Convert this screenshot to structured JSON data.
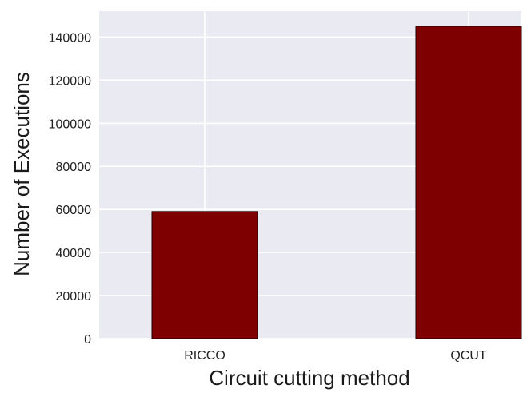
{
  "chart_data": {
    "type": "bar",
    "title": "",
    "xlabel": "Circuit cutting method",
    "ylabel": "Number of Executions",
    "categories": [
      "RICCO",
      "QCUT"
    ],
    "values": [
      59000,
      145000
    ],
    "ylim": [
      0,
      152000
    ],
    "yticks": [
      0,
      20000,
      40000,
      60000,
      80000,
      100000,
      120000,
      140000
    ],
    "ytick_labels": [
      "0",
      "20000",
      "40000",
      "60000",
      "80000",
      "100000",
      "120000",
      "140000"
    ],
    "grid": true,
    "legend": "none",
    "colors": {
      "bar_fill": "#7f0000",
      "bar_edge": "#1a0000",
      "plot_background": "#eaeaf2",
      "grid": "#ffffff"
    }
  }
}
